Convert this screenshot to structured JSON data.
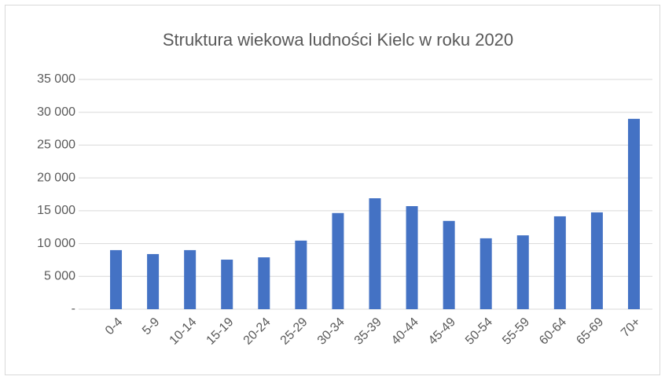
{
  "chart_data": {
    "type": "bar",
    "title": "Struktura wiekowa ludności Kielc w roku 2020",
    "categories": [
      "0-4",
      "5-9",
      "10-14",
      "15-19",
      "20-24",
      "25-29",
      "30-34",
      "35-39",
      "40-44",
      "45-49",
      "50-54",
      "55-59",
      "60-64",
      "65-69",
      "70+"
    ],
    "values": [
      9000,
      8400,
      9000,
      7550,
      7900,
      10450,
      14650,
      16900,
      15700,
      13450,
      10800,
      11250,
      14150,
      14750,
      29000
    ],
    "color": "#4472c4",
    "ylim": [
      0,
      35000
    ],
    "yticks": [
      {
        "value": 0,
        "label": "-"
      },
      {
        "value": 5000,
        "label": "5 000"
      },
      {
        "value": 10000,
        "label": "10 000"
      },
      {
        "value": 15000,
        "label": "15 000"
      },
      {
        "value": 20000,
        "label": "20 000"
      },
      {
        "value": 25000,
        "label": "25 000"
      },
      {
        "value": 30000,
        "label": "30 000"
      },
      {
        "value": 35000,
        "label": "35 000"
      }
    ],
    "grid": true
  }
}
